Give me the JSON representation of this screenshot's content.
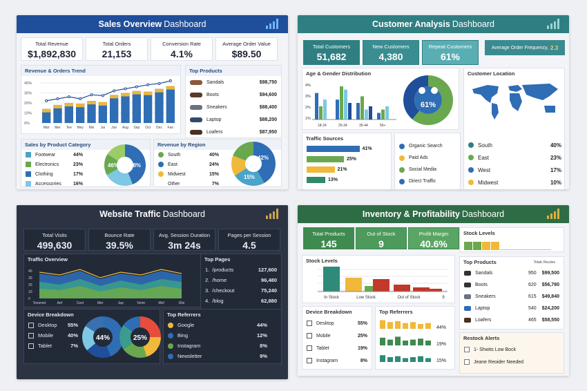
{
  "sales": {
    "title_bold": "Sales Overview",
    "title_rest": "Dashboard",
    "kpis": [
      {
        "label": "Total Revenue",
        "value": "$1,892,830"
      },
      {
        "label": "Total Orders",
        "value": "21,153"
      },
      {
        "label": "Conversion Rate",
        "value": "4.1%"
      },
      {
        "label": "Average Order Value",
        "value": "$89.50"
      }
    ],
    "trend_title": "Revenue & Orders Trend",
    "trend_yticks": [
      "40%",
      "30%",
      "20%",
      "10%",
      "0%"
    ],
    "trend_months": [
      "Mar",
      "Mer",
      "Tee",
      "Mey",
      "Mis",
      "Jai",
      "Jun",
      "Aug",
      "Sep",
      "Oct",
      "Dec",
      "Fan"
    ],
    "trend_bars": [
      0.35,
      0.45,
      0.5,
      0.48,
      0.55,
      0.52,
      0.7,
      0.75,
      0.8,
      0.78,
      0.85,
      0.92
    ],
    "trend_line": [
      0.45,
      0.5,
      0.55,
      0.5,
      0.6,
      0.58,
      0.7,
      0.75,
      0.8,
      0.85,
      0.88,
      0.95
    ],
    "products_title": "Top Products",
    "products": [
      {
        "name": "Sandals",
        "value": "$98,750"
      },
      {
        "name": "Boots",
        "value": "$94,600"
      },
      {
        "name": "Sneakers",
        "value": "$88,400"
      },
      {
        "name": "Laptop",
        "value": "$88,200"
      },
      {
        "name": "Loafers",
        "value": "$87,950"
      }
    ],
    "category_title": "Sales by Product Category",
    "categories": [
      {
        "name": "Footwear",
        "pct": "44%"
      },
      {
        "name": "Electronics",
        "pct": "23%"
      },
      {
        "name": "Clothing",
        "pct": "17%"
      },
      {
        "name": "Accessories",
        "pct": "16%"
      }
    ],
    "cat_donut": [
      "46%",
      "48%"
    ],
    "region_title": "Revenue by Region",
    "regions": [
      {
        "name": "South",
        "pct": "40%"
      },
      {
        "name": "East",
        "pct": "24%"
      },
      {
        "name": "Midwest",
        "pct": "15%"
      },
      {
        "name": "Other",
        "pct": "7%"
      }
    ],
    "region_donut": [
      "42%",
      "15%"
    ]
  },
  "customer": {
    "title_bold": "Customer Analysis",
    "title_rest": "Dashboard",
    "kpis": [
      {
        "label": "Total Customers",
        "value": "51,682"
      },
      {
        "label": "New Customers",
        "value": "4,380"
      },
      {
        "label": "Repeat Customers",
        "value": "61%"
      }
    ],
    "freq_label": "Average Order Frequency,",
    "freq_value": "2.3",
    "age_title": "Age & Gender Distribution",
    "age_yticks": [
      "4%",
      "3%",
      "2%",
      "1%"
    ],
    "age_groups": [
      "18-24",
      "25-34",
      "35-44",
      "55+"
    ],
    "donut_value": "61%",
    "location_title": "Customer Location",
    "locations": [
      {
        "name": "South",
        "pct": "40%"
      },
      {
        "name": "East",
        "pct": "23%"
      },
      {
        "name": "West",
        "pct": "17%"
      },
      {
        "name": "Midwest",
        "pct": "10%"
      }
    ],
    "traffic_title": "Traffic Sources",
    "traffic": [
      {
        "pct": "41%",
        "w": 0.85
      },
      {
        "pct": "25%",
        "w": 0.6
      },
      {
        "pct": "21%",
        "w": 0.45
      },
      {
        "pct": "13%",
        "w": 0.3
      }
    ],
    "sources": [
      "Organic Search",
      "Paid Ads",
      "Social Media",
      "Direct Traffic"
    ]
  },
  "web": {
    "title_bold": "Website Traffic",
    "title_rest": "Dashboard",
    "kpis": [
      {
        "label": "Total Visits",
        "value": "499,630"
      },
      {
        "label": "Bounce Rate",
        "value": "39.5%"
      },
      {
        "label": "Avg. Session Duration",
        "value": "3m 24s"
      },
      {
        "label": "Pages per Session",
        "value": "4.5"
      }
    ],
    "overview_title": "Traffic Overview",
    "overview_yticks": [
      "40",
      "30",
      "20",
      "10",
      "0"
    ],
    "overview_x": [
      "Teesmet",
      "Aef",
      "Cest",
      "Mer",
      "Jap",
      "Verte",
      "Mef",
      "Dits"
    ],
    "pages_title": "Top Pages",
    "pages": [
      {
        "n": "1.",
        "path": "/products",
        "v": "127,600"
      },
      {
        "n": "2.",
        "path": "/home",
        "v": "96,480"
      },
      {
        "n": "3.",
        "path": "/checkout",
        "v": "75,240"
      },
      {
        "n": "4.",
        "path": "/blog",
        "v": "62,880"
      }
    ],
    "device_title": "Device Breakdown",
    "devices": [
      {
        "name": "Desktop",
        "pct": "55%"
      },
      {
        "name": "Mobile",
        "pct": "40%"
      },
      {
        "name": "Tablet",
        "pct": "7%"
      }
    ],
    "donuts": [
      "44%",
      "25%"
    ],
    "ref_title": "Top Referrers",
    "referrers": [
      {
        "name": "Google",
        "pct": "44%"
      },
      {
        "name": "Bing",
        "pct": "12%"
      },
      {
        "name": "Instagram",
        "pct": "8%"
      },
      {
        "name": "Newsletter",
        "pct": "9%"
      }
    ]
  },
  "inv": {
    "title_bold": "Inventory & Profitability",
    "title_rest": "Dashboard",
    "kpis": [
      {
        "label": "Total Products",
        "value": "145"
      },
      {
        "label": "Out of Stock",
        "value": "9"
      },
      {
        "label": "Profit Margin",
        "value": "40.6%"
      }
    ],
    "stock_top_title": "Stock Levels",
    "stock_title": "Stock Levels",
    "stock_x": [
      "In Stock",
      "Low Stock",
      "Out of Stock",
      "9"
    ],
    "products_title": "Top Products",
    "products_sub": "Totalc Recdes",
    "products": [
      {
        "name": "Sandals",
        "q": "950",
        "v": "$99,500"
      },
      {
        "name": "Boots",
        "q": "620",
        "v": "$56,780"
      },
      {
        "name": "Sneakers",
        "q": "615",
        "v": "$49,840"
      },
      {
        "name": "Laptop",
        "q": "540",
        "v": "$24,200"
      },
      {
        "name": "Loafers",
        "q": "465",
        "v": "$58,550"
      }
    ],
    "device_title": "Device Breakdown",
    "devices": [
      {
        "name": "Desktop",
        "pct": "55%"
      },
      {
        "name": "Mobile",
        "pct": "25%"
      },
      {
        "name": "Tablet",
        "pct": "19%"
      },
      {
        "name": "Instagram",
        "pct": "8%"
      }
    ],
    "ref_title": "Top Referrers",
    "ref_pcts": [
      "44%",
      "19%",
      "15%"
    ],
    "alerts_title": "Restock Alerts",
    "alerts": [
      "1- Shwits  Low Bock",
      "Jeane Reoider Needed"
    ]
  }
}
